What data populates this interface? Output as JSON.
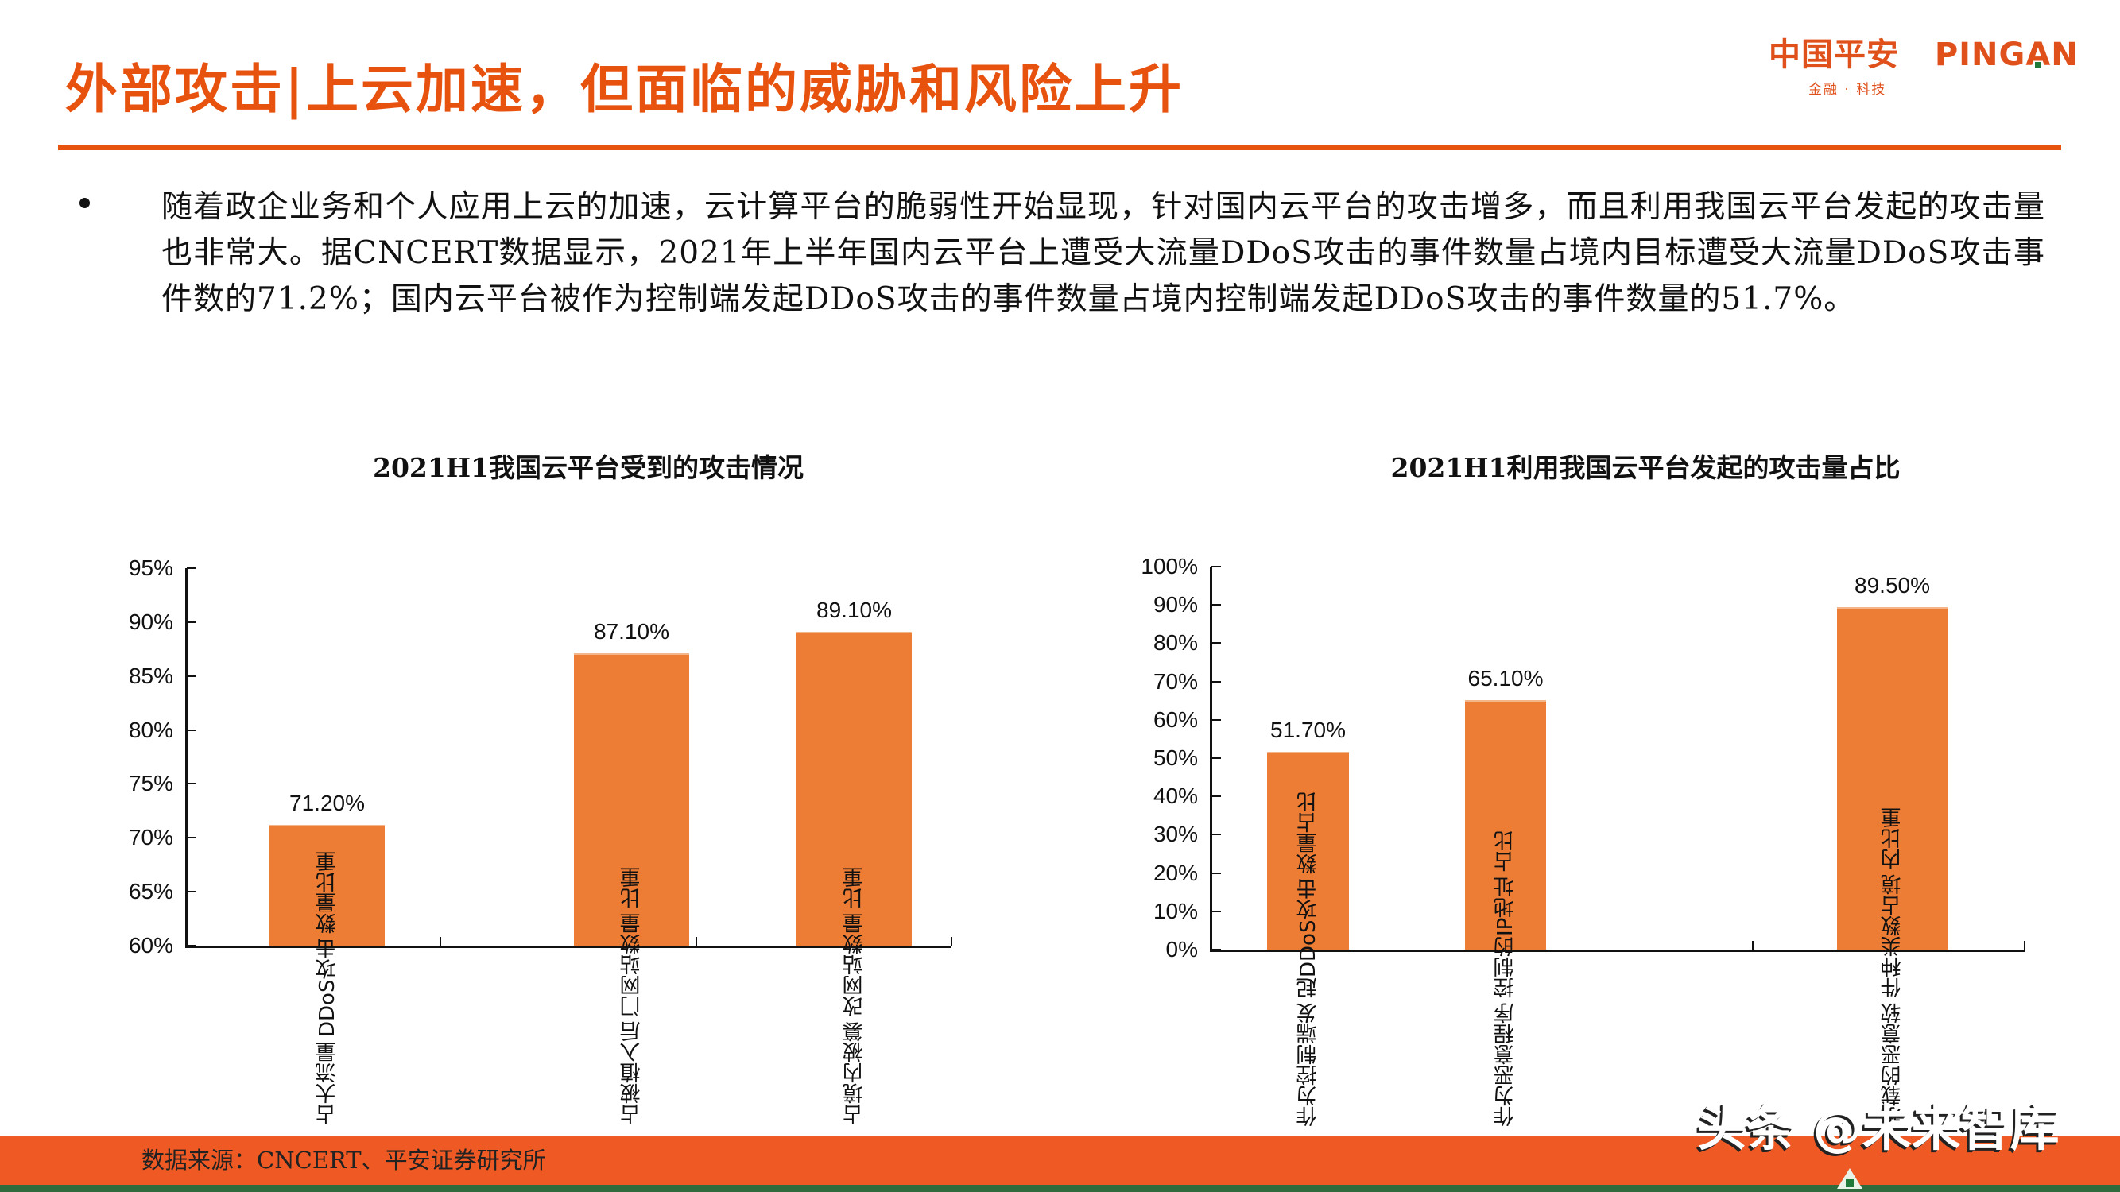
{
  "header": {
    "title": "外部攻击|上云加速，但面临的威胁和风险上升",
    "logo": {
      "cn": "中国平安",
      "en_prefix": "PING",
      "en_a": "A",
      "en_suffix": "N",
      "tagline": "金融 · 科技"
    }
  },
  "body": {
    "bullet_text": "随着政企业务和个人应用上云的加速，云计算平台的脆弱性开始显现，针对国内云平台的攻击增多，而且利用我国云平台发起的攻击量也非常大。据CNCERT数据显示，2021年上半年国内云平台上遭受大流量DDoS攻击的事件数量占境内目标遭受大流量DDoS攻击事件数的71.2%；国内云平台被作为控制端发起DDoS攻击的事件数量占境内控制端发起DDoS攻击的事件数量的51.7%。"
  },
  "chart_data": [
    {
      "type": "bar",
      "title": "2021H1我国云平台受到的攻击情况",
      "categories": [
        "占大流量DDoS攻击数量比重",
        "占被植入后门网站数量比重",
        "占境内被篡改网站数量比重"
      ],
      "category_lines": [
        [
          "占大流量",
          "DDoS攻击",
          "数量比重"
        ],
        [
          "占被植入后",
          "门网站数量",
          "比重"
        ],
        [
          "占境内被篡",
          "改网站数量",
          "比重"
        ]
      ],
      "values": [
        71.2,
        87.1,
        89.1
      ],
      "value_labels": [
        "71.20%",
        "87.10%",
        "89.10%"
      ],
      "xlabel": "",
      "ylabel": "",
      "ylim": [
        60,
        95
      ],
      "yticks": [
        "95%",
        "90%",
        "85%",
        "80%",
        "75%",
        "70%",
        "65%",
        "60%"
      ],
      "grid": false,
      "legend": "none",
      "color": "#ed7d35"
    },
    {
      "type": "bar",
      "title": "2021H1利用我国云平台发起的攻击量占比",
      "categories": [
        "作为控制端发起DDoS攻击数量占比",
        "作为恶意程序控制的IP地址占比",
        "承载的恶意软件种类数占境内比重"
      ],
      "category_lines": [
        [
          "作为控制端发",
          "起DDoS攻击",
          "数量占比"
        ],
        [
          "作为恶意程序",
          "控制的IP地址",
          "占比"
        ],
        [
          "承载的恶意软",
          "件种类数占境",
          "内比重"
        ]
      ],
      "values": [
        51.7,
        65.1,
        89.5
      ],
      "value_labels": [
        "51.70%",
        "65.10%",
        "89.50%"
      ],
      "xlabel": "",
      "ylabel": "",
      "ylim": [
        0,
        100
      ],
      "yticks": [
        "100%",
        "90%",
        "80%",
        "70%",
        "60%",
        "50%",
        "40%",
        "30%",
        "20%",
        "10%",
        "0%"
      ],
      "grid": false,
      "legend": "none",
      "color": "#ed7d35"
    }
  ],
  "footer": {
    "source": "数据来源：CNCERT、平安证券研究所",
    "watermark": "头条 @未来智库"
  },
  "colors": {
    "brand_orange": "#e8520f",
    "bar_orange": "#ed7d35",
    "footer_orange": "#ef5a24",
    "footer_green": "#2f6b3c"
  }
}
